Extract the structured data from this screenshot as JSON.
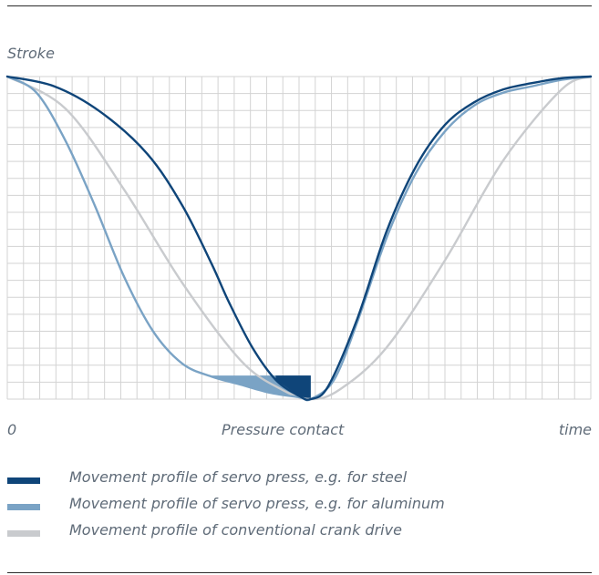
{
  "colors": {
    "steel": "#0f4579",
    "aluminum": "#7aa3c5",
    "crank": "#c9cbce",
    "grid": "#d3d3d3",
    "text": "#5f6b78"
  },
  "chart_data": {
    "type": "line",
    "ylabel": "Stroke",
    "x_tick_labels": {
      "start": "0",
      "middle": "Pressure contact",
      "end": "time"
    },
    "xlim": [
      0,
      1
    ],
    "ylim": [
      0,
      1
    ],
    "grid": true,
    "legend_position": "bottom",
    "series": [
      {
        "name": "Movement profile of servo press, e.g. for steel",
        "color": "#0f4579",
        "x": [
          0,
          0.08,
          0.16,
          0.24,
          0.3,
          0.35,
          0.38,
          0.42,
          0.46,
          0.5,
          0.52,
          0.55,
          0.6,
          0.65,
          0.7,
          0.75,
          0.8,
          0.85,
          0.9,
          0.95,
          1.0
        ],
        "y": [
          1.0,
          0.97,
          0.89,
          0.76,
          0.6,
          0.42,
          0.3,
          0.16,
          0.06,
          0.01,
          0.0,
          0.04,
          0.25,
          0.52,
          0.72,
          0.85,
          0.92,
          0.96,
          0.98,
          0.995,
          1.0
        ]
      },
      {
        "name": "Movement profile of servo press, e.g. for aluminum",
        "color": "#7aa3c5",
        "x": [
          0,
          0.05,
          0.1,
          0.15,
          0.2,
          0.25,
          0.3,
          0.35,
          0.4,
          0.45,
          0.5,
          0.52,
          0.56,
          0.6,
          0.65,
          0.7,
          0.75,
          0.8,
          0.85,
          0.9,
          0.95,
          1.0
        ],
        "y": [
          1.0,
          0.95,
          0.8,
          0.6,
          0.38,
          0.21,
          0.11,
          0.07,
          0.045,
          0.02,
          0.006,
          0.0,
          0.06,
          0.24,
          0.5,
          0.7,
          0.83,
          0.91,
          0.95,
          0.97,
          0.99,
          1.0
        ]
      },
      {
        "name": "Movement profile of conventional crank drive",
        "color": "#c9cbce",
        "x": [
          0,
          0.1,
          0.2,
          0.3,
          0.4,
          0.47,
          0.52,
          0.57,
          0.65,
          0.75,
          0.85,
          0.95,
          1.0
        ],
        "y": [
          1.0,
          0.9,
          0.65,
          0.36,
          0.12,
          0.03,
          0.0,
          0.03,
          0.16,
          0.43,
          0.74,
          0.96,
          1.0
        ]
      }
    ],
    "highlight_regions": [
      {
        "series": "Movement profile of conventional crank drive",
        "color": "#c9cbce",
        "x_range": [
          0.35,
          0.52
        ],
        "y_top": 0.073
      },
      {
        "series": "Movement profile of servo press, e.g. for aluminum",
        "color": "#7aa3c5",
        "x_range": [
          0.35,
          0.52
        ],
        "y_top": 0.073
      },
      {
        "series": "Movement profile of servo press, e.g. for steel",
        "color": "#0f4579",
        "x_range": [
          0.46,
          0.52
        ],
        "y_top": 0.073
      }
    ]
  }
}
